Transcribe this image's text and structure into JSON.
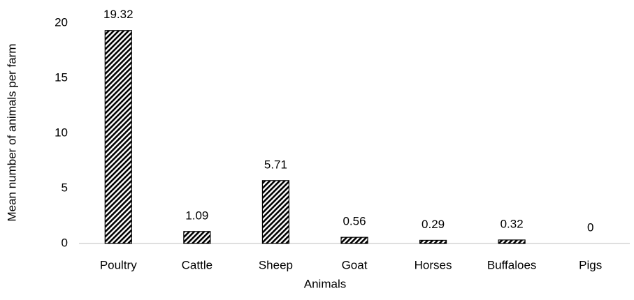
{
  "chart_data": {
    "type": "bar",
    "x_label": "Animals",
    "y_label": "Mean number of animals per farm",
    "categories": [
      "Poultry",
      "Cattle",
      "Sheep",
      "Goat",
      "Horses",
      "Buffaloes",
      "Pigs"
    ],
    "values": [
      19.32,
      1.09,
      5.71,
      0.56,
      0.29,
      0.32,
      0
    ],
    "color": "#000000",
    "ylim": [
      0,
      20
    ],
    "yticks": [
      0,
      5,
      10,
      15,
      20
    ],
    "grid": false
  }
}
